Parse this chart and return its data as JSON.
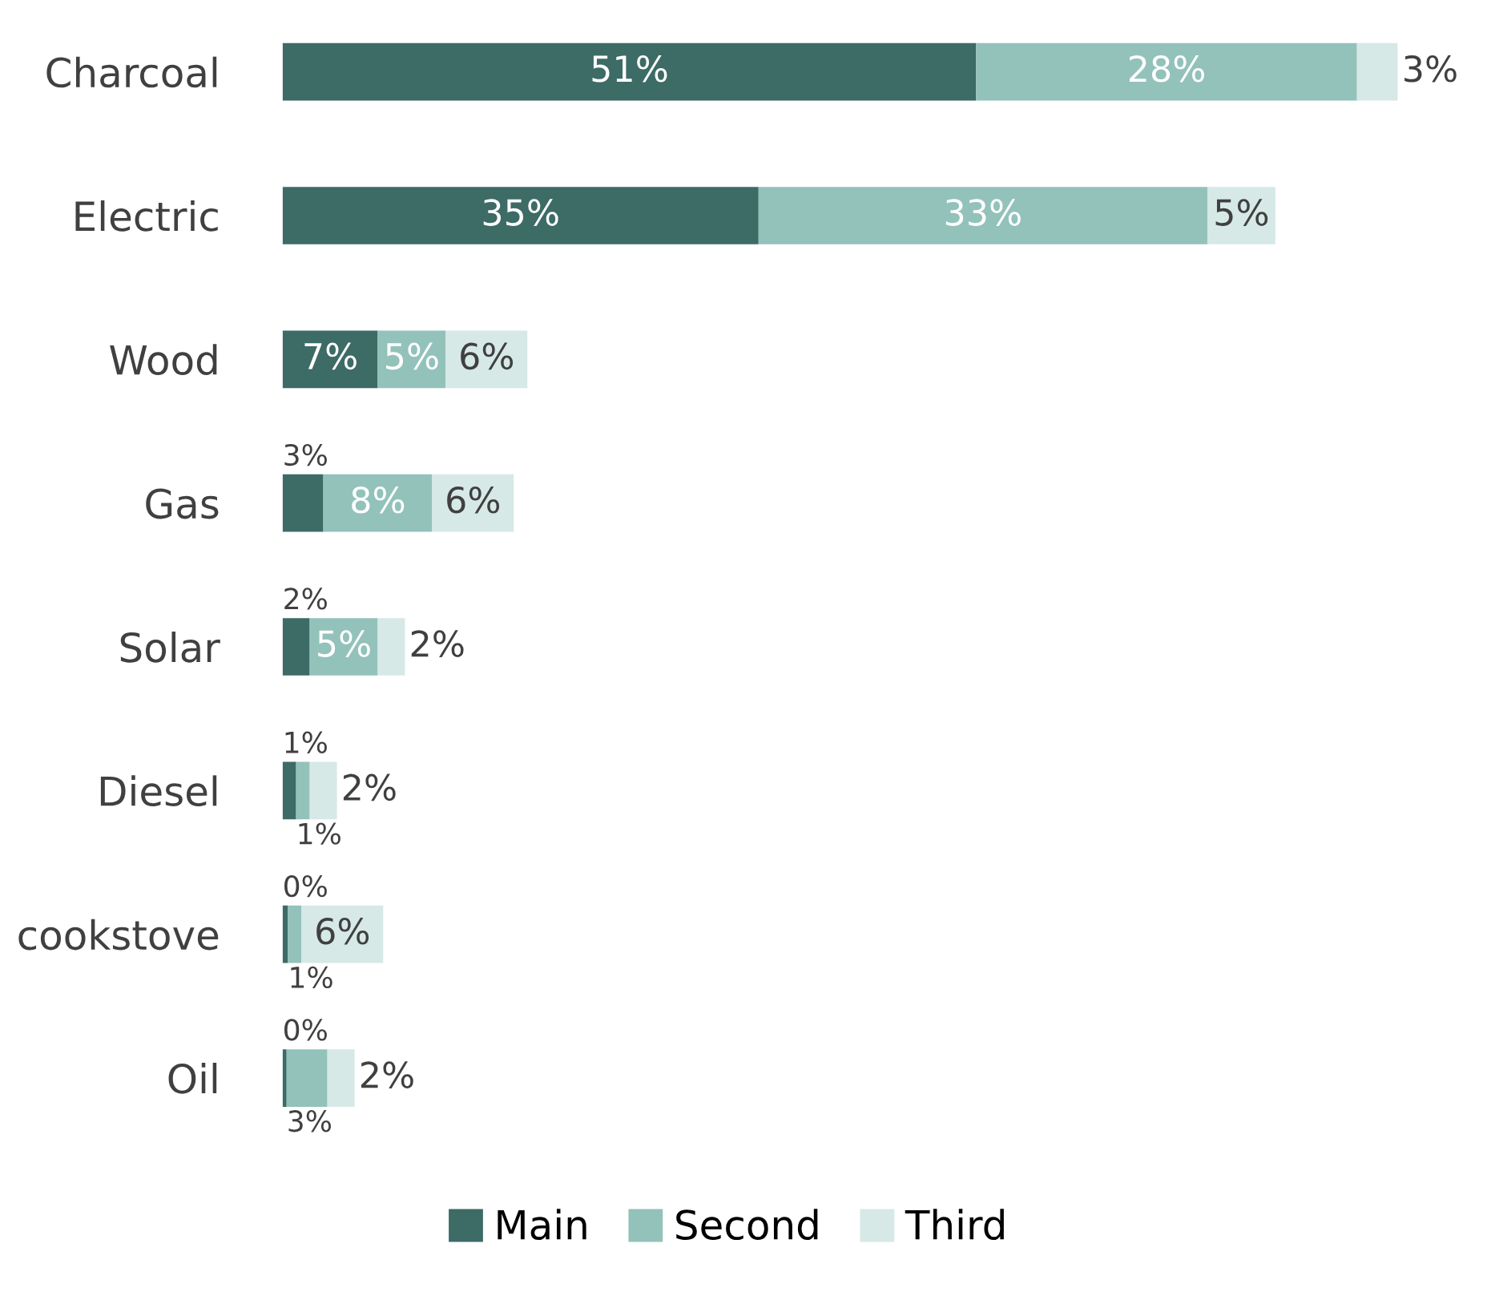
{
  "chart_data": {
    "type": "bar",
    "orientation": "horizontal",
    "stacked": true,
    "legend": "bottom",
    "categories": [
      "Charcoal",
      "Electric",
      "Wood",
      "Gas",
      "Solar",
      "Diesel",
      "cookstove",
      "Oil"
    ],
    "series": [
      {
        "name": "Main",
        "color": "#3d6b66",
        "values": [
          51,
          35,
          7,
          3,
          2,
          1,
          0.4,
          0.3
        ],
        "value_labels": [
          "51%",
          "35%",
          "7%",
          "3%",
          "2%",
          "1%",
          "0%",
          "0%"
        ]
      },
      {
        "name": "Second",
        "color": "#93c2bb",
        "values": [
          28,
          33,
          5,
          8,
          5,
          1,
          1,
          3
        ],
        "value_labels": [
          "28%",
          "33%",
          "5%",
          "8%",
          "5%",
          "1%",
          "1%",
          "3%"
        ]
      },
      {
        "name": "Third",
        "color": "#d6e9e6",
        "values": [
          3,
          5,
          6,
          6,
          2,
          2,
          6,
          2
        ],
        "value_labels": [
          "3%",
          "5%",
          "6%",
          "6%",
          "2%",
          "2%",
          "6%",
          "2%"
        ]
      }
    ]
  }
}
